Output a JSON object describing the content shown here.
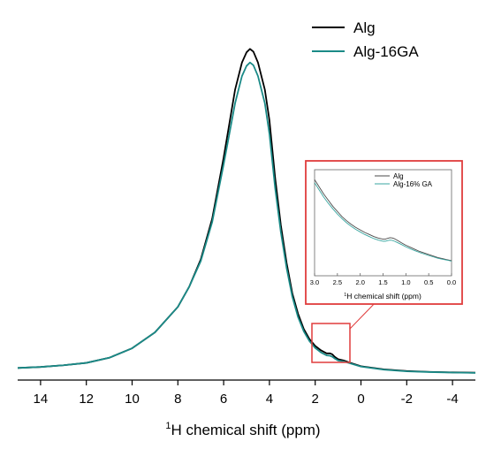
{
  "chart_data": [
    {
      "type": "line",
      "title": "",
      "xlabel_sup": "1",
      "xlabel": "H chemical shift (ppm)",
      "ylabel": "",
      "xlim": [
        15,
        -5
      ],
      "x_reversed": true,
      "xticks": [
        14,
        12,
        10,
        8,
        6,
        4,
        2,
        0,
        -2,
        -4
      ],
      "xtick_labels": [
        "14",
        "12",
        "10",
        "8",
        "6",
        "4",
        "2",
        "0",
        "-2",
        "-4"
      ],
      "y_axis_visible": false,
      "ylim": [
        0,
        100
      ],
      "grid": false,
      "legend_position": "top-right",
      "series": [
        {
          "name": "Alg",
          "color": "#000000",
          "points": [
            [
              15,
              2.0
            ],
            [
              14,
              2.3
            ],
            [
              13,
              2.8
            ],
            [
              12,
              3.5
            ],
            [
              11,
              5.0
            ],
            [
              10,
              7.8
            ],
            [
              9,
              12.5
            ],
            [
              8,
              20.0
            ],
            [
              7.5,
              26.0
            ],
            [
              7,
              34.0
            ],
            [
              6.5,
              46.0
            ],
            [
              6,
              64.0
            ],
            [
              5.5,
              84.0
            ],
            [
              5.2,
              92.0
            ],
            [
              5.0,
              95.0
            ],
            [
              4.85,
              96.0
            ],
            [
              4.7,
              95.2
            ],
            [
              4.5,
              92.0
            ],
            [
              4.2,
              84.0
            ],
            [
              4.0,
              75.0
            ],
            [
              3.75,
              58.0
            ],
            [
              3.5,
              44.0
            ],
            [
              3.25,
              33.0
            ],
            [
              3.0,
              24.0
            ],
            [
              2.75,
              18.0
            ],
            [
              2.5,
              13.5
            ],
            [
              2.25,
              10.5
            ],
            [
              2.0,
              8.5
            ],
            [
              1.75,
              7.2
            ],
            [
              1.5,
              6.3
            ],
            [
              1.35,
              6.3
            ],
            [
              1.25,
              6.0
            ],
            [
              1.15,
              5.3
            ],
            [
              1.0,
              4.6
            ],
            [
              0.75,
              4.2
            ],
            [
              0.5,
              3.6
            ],
            [
              0,
              2.5
            ],
            [
              -1,
              1.6
            ],
            [
              -2,
              1.1
            ],
            [
              -3,
              0.85
            ],
            [
              -4,
              0.7
            ],
            [
              -5,
              0.6
            ]
          ]
        },
        {
          "name": "Alg-16GA",
          "color": "#1a8a87",
          "points": [
            [
              15,
              2.0
            ],
            [
              14,
              2.3
            ],
            [
              13,
              2.8
            ],
            [
              12,
              3.5
            ],
            [
              11,
              5.0
            ],
            [
              10,
              7.8
            ],
            [
              9,
              12.5
            ],
            [
              8,
              20.0
            ],
            [
              7.5,
              26.0
            ],
            [
              7,
              33.5
            ],
            [
              6.5,
              45.0
            ],
            [
              6,
              62.0
            ],
            [
              5.5,
              80.0
            ],
            [
              5.2,
              88.0
            ],
            [
              5.0,
              91.0
            ],
            [
              4.85,
              92.0
            ],
            [
              4.7,
              91.2
            ],
            [
              4.5,
              88.0
            ],
            [
              4.2,
              80.0
            ],
            [
              4.0,
              71.0
            ],
            [
              3.75,
              55.0
            ],
            [
              3.5,
              42.0
            ],
            [
              3.25,
              31.5
            ],
            [
              3.0,
              23.0
            ],
            [
              2.75,
              17.0
            ],
            [
              2.5,
              12.8
            ],
            [
              2.25,
              9.9
            ],
            [
              2.0,
              7.9
            ],
            [
              1.75,
              6.6
            ],
            [
              1.5,
              5.7
            ],
            [
              1.35,
              5.6
            ],
            [
              1.25,
              5.3
            ],
            [
              1.15,
              4.8
            ],
            [
              1.0,
              4.2
            ],
            [
              0.75,
              3.9
            ],
            [
              0.5,
              3.4
            ],
            [
              0,
              2.4
            ],
            [
              -1,
              1.5
            ],
            [
              -2,
              1.0
            ],
            [
              -3,
              0.8
            ],
            [
              -4,
              0.65
            ],
            [
              -5,
              0.55
            ]
          ]
        }
      ]
    },
    {
      "type": "line",
      "title": "",
      "xlabel_sup": "1",
      "xlabel": "H chemical shift (ppm)",
      "xlim": [
        3.0,
        0.0
      ],
      "x_reversed": true,
      "xticks": [
        3.0,
        2.5,
        2.0,
        1.5,
        1.0,
        0.5,
        0.0
      ],
      "xtick_labels": [
        "3.0",
        "2.5",
        "2.0",
        "1.5",
        "1.0",
        "0.5",
        "0.0"
      ],
      "y_axis_visible": false,
      "ylim": [
        0,
        100
      ],
      "grid": false,
      "legend_position": "top-right",
      "series": [
        {
          "name": "Alg",
          "color": "#4a4a4a",
          "points": [
            [
              3.0,
              92
            ],
            [
              2.9,
              85
            ],
            [
              2.8,
              78
            ],
            [
              2.7,
              72
            ],
            [
              2.6,
              66
            ],
            [
              2.5,
              61
            ],
            [
              2.4,
              56
            ],
            [
              2.3,
              52
            ],
            [
              2.2,
              48.5
            ],
            [
              2.1,
              45.5
            ],
            [
              2.0,
              43
            ],
            [
              1.9,
              40.5
            ],
            [
              1.8,
              38.5
            ],
            [
              1.7,
              36.5
            ],
            [
              1.6,
              35
            ],
            [
              1.5,
              34
            ],
            [
              1.45,
              34
            ],
            [
              1.4,
              34.8
            ],
            [
              1.35,
              35.4
            ],
            [
              1.3,
              35.2
            ],
            [
              1.25,
              34.4
            ],
            [
              1.2,
              33.2
            ],
            [
              1.1,
              30.5
            ],
            [
              1.0,
              28
            ],
            [
              0.9,
              26
            ],
            [
              0.8,
              24
            ],
            [
              0.7,
              22
            ],
            [
              0.6,
              20.5
            ],
            [
              0.5,
              19
            ],
            [
              0.4,
              17.5
            ],
            [
              0.3,
              16
            ],
            [
              0.2,
              15
            ],
            [
              0.1,
              14
            ],
            [
              0.0,
              13
            ]
          ]
        },
        {
          "name": "Alg-16% GA",
          "color": "#3aa6a0",
          "points": [
            [
              3.0,
              89
            ],
            [
              2.9,
              82
            ],
            [
              2.8,
              75
            ],
            [
              2.7,
              69
            ],
            [
              2.6,
              63.5
            ],
            [
              2.5,
              58.5
            ],
            [
              2.4,
              54
            ],
            [
              2.3,
              50
            ],
            [
              2.2,
              46.5
            ],
            [
              2.1,
              43.5
            ],
            [
              2.0,
              41
            ],
            [
              1.9,
              38.5
            ],
            [
              1.8,
              36.5
            ],
            [
              1.7,
              34.5
            ],
            [
              1.6,
              33
            ],
            [
              1.5,
              32
            ],
            [
              1.45,
              32
            ],
            [
              1.4,
              32.6
            ],
            [
              1.35,
              33
            ],
            [
              1.3,
              32.8
            ],
            [
              1.25,
              32
            ],
            [
              1.2,
              31
            ],
            [
              1.1,
              28.8
            ],
            [
              1.0,
              26.5
            ],
            [
              0.9,
              24.5
            ],
            [
              0.8,
              22.7
            ],
            [
              0.7,
              21
            ],
            [
              0.6,
              19.5
            ],
            [
              0.5,
              18
            ],
            [
              0.4,
              16.7
            ],
            [
              0.3,
              15.4
            ],
            [
              0.2,
              14.4
            ],
            [
              0.1,
              13.5
            ],
            [
              0.0,
              12.6
            ]
          ]
        }
      ]
    }
  ],
  "colors": {
    "callout": "#e03c3c",
    "axis": "#000000"
  }
}
